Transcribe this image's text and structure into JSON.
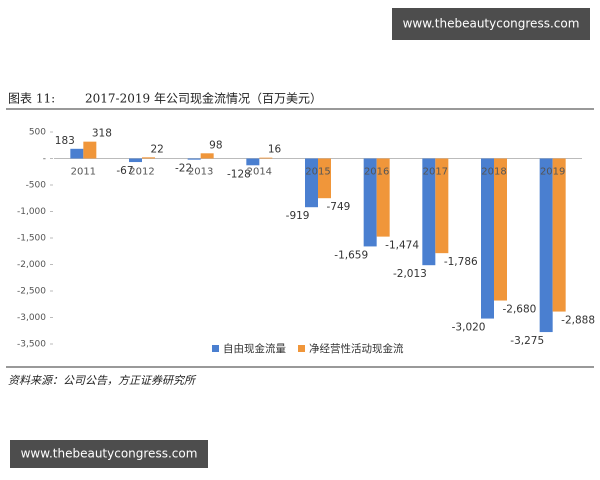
{
  "watermark_top": "www.thebeautycongress.com",
  "caption": {
    "label": "图表 11:",
    "title": "2017-2019 年公司现金流情况（百万美元）"
  },
  "source": "资料来源：公司公告，方正证券研究所",
  "watermark_bottom": "www.thebeautycongress.com",
  "chart_data": {
    "type": "bar",
    "categories": [
      "2011",
      "2012",
      "2013",
      "2014",
      "2015",
      "2016",
      "2017",
      "2018",
      "2019"
    ],
    "series": [
      {
        "name": "自由现金流量",
        "color": "#4a7fd0",
        "values": [
          183,
          -67,
          -22,
          -128,
          -919,
          -1659,
          -2013,
          -3020,
          -3275
        ],
        "value_labels": [
          "183",
          "-67",
          "-22",
          "-128",
          "-919",
          "-1,659",
          "-2,013",
          "-3,020",
          "-3,275"
        ]
      },
      {
        "name": "净经营性活动现金流",
        "color": "#f0963a",
        "values": [
          318,
          22,
          98,
          16,
          -749,
          -1474,
          -1786,
          -2680,
          -2888
        ],
        "value_labels": [
          "318",
          "22",
          "98",
          "16",
          "-749",
          "-1,474",
          "-1,786",
          "-2,680",
          "-2,888"
        ]
      }
    ],
    "ylim": [
      -3500,
      500
    ],
    "yticks": [
      500,
      {
        "value": 0,
        "label": "-"
      },
      -500,
      {
        "value": -1000,
        "label": "-1,000"
      },
      {
        "value": -1500,
        "label": "-1,500"
      },
      {
        "value": -2000,
        "label": "-2,000"
      },
      {
        "value": -2500,
        "label": "-2,500"
      },
      {
        "value": -3000,
        "label": "-3,000"
      },
      {
        "value": -3500,
        "label": "-3,500"
      }
    ],
    "legend": "bottom-right"
  }
}
